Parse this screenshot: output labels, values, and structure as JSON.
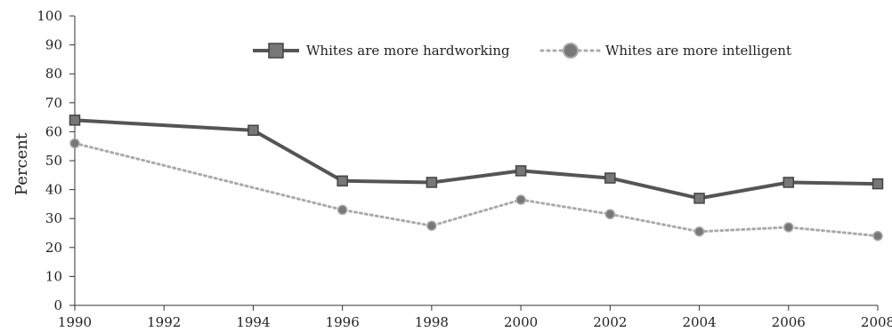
{
  "chart_data": {
    "type": "line",
    "title": "",
    "xlabel": "",
    "ylabel": "Percent",
    "ylim": [
      0,
      100
    ],
    "yticks": [
      0,
      10,
      20,
      30,
      40,
      50,
      60,
      70,
      80,
      90,
      100
    ],
    "xlim": [
      1990,
      2008
    ],
    "xticks": [
      1990,
      1992,
      1994,
      1996,
      1998,
      2000,
      2002,
      2004,
      2006,
      2008
    ],
    "grid": false,
    "legend_position": "top",
    "series": [
      {
        "name": "Whites are more hardworking",
        "color": "#555555",
        "line_style": "solid",
        "marker": "square",
        "x": [
          1990,
          1994,
          1996,
          1998,
          2000,
          2002,
          2004,
          2006,
          2008
        ],
        "values": [
          64,
          60.5,
          43,
          42.5,
          46.5,
          44,
          37,
          42.5,
          42
        ]
      },
      {
        "name": "Whites are more intelligent",
        "color": "#aaaaaa",
        "marker_color": "#777777",
        "line_style": "dotted",
        "marker": "circle",
        "x": [
          1990,
          1996,
          1998,
          2000,
          2002,
          2004,
          2006,
          2008
        ],
        "values": [
          56,
          33,
          27.5,
          36.5,
          31.5,
          25.5,
          27,
          24
        ]
      }
    ]
  }
}
